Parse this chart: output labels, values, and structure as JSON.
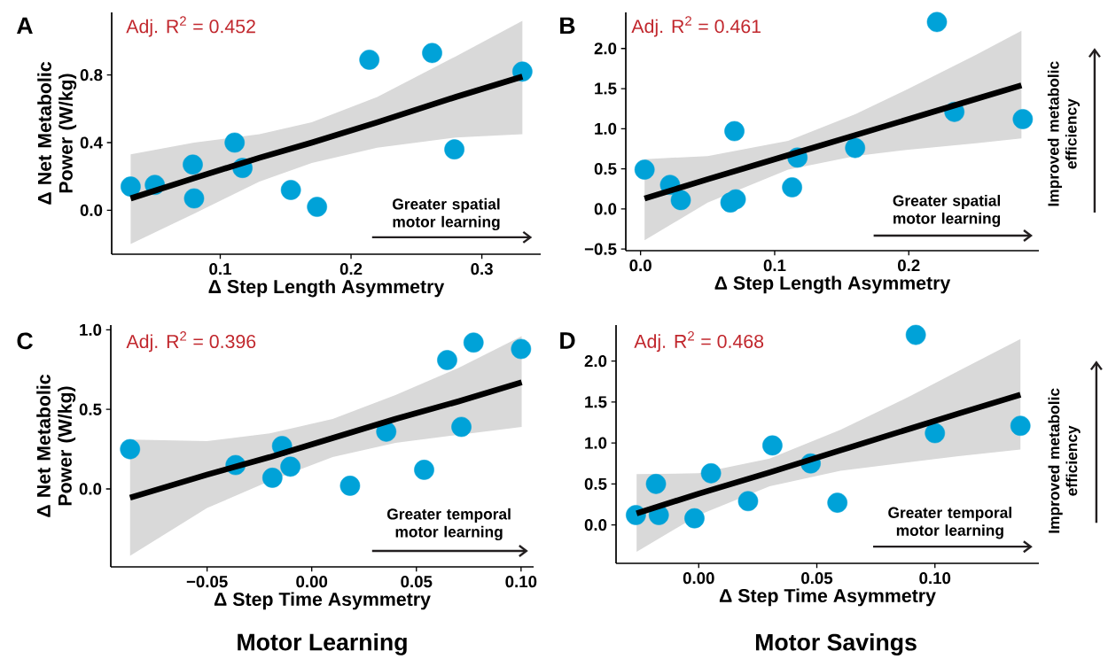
{
  "chart_data": [
    {
      "type": "scatter",
      "marker": "circle",
      "xlabel": "Δ Step Length Asymmetry",
      "ylabel": "Δ Net Metabolic Power (W/kg)",
      "xlim": [
        0.017,
        0.345
      ],
      "ylim": [
        -0.26,
        1.17
      ],
      "xticks": [
        0.1,
        0.2,
        0.3
      ],
      "yticks": [
        {
          "value": 0,
          "label": "0.0"
        },
        0.4,
        0.8
      ],
      "series": [
        {
          "color": "#00a2d8",
          "x": [
            0.0315,
            0.05,
            0.079,
            0.08,
            0.111,
            0.117,
            0.154,
            0.174,
            0.214,
            0.262,
            0.279,
            0.331
          ],
          "values": [
            0.14,
            0.15,
            0.27,
            0.07,
            0.4,
            0.25,
            0.12,
            0.02,
            0.89,
            0.93,
            0.36,
            0.82
          ]
        },
        {
          "type": "line",
          "marker": "none",
          "color": "#000000",
          "x": [
            0.0315,
            0.08,
            0.13,
            0.17,
            0.22,
            0.28,
            0.331
          ],
          "values": [
            0.07,
            0.19,
            0.31,
            0.4,
            0.52,
            0.67,
            0.79
          ],
          "lower": [
            -0.2,
            -0.02,
            0.17,
            0.28,
            0.37,
            0.43,
            0.45
          ],
          "upper": [
            0.33,
            0.4,
            0.45,
            0.52,
            0.67,
            0.91,
            1.12
          ]
        }
      ],
      "annotations": [
        "A",
        "Adj. R$^{2}$ = 0.452",
        "Greater spatial motor learning"
      ]
    },
    {
      "type": "scatter",
      "marker": "circle",
      "xlabel": "Δ Step Length Asymmetry",
      "xlim": [
        -0.011,
        0.297
      ],
      "ylim": [
        -0.52,
        2.45
      ],
      "xticks": [
        {
          "value": 0,
          "label": "0.0"
        },
        0.1,
        0.2
      ],
      "yticks": [
        {
          "value": -0.5,
          "label": "−0.5"
        },
        {
          "value": 0,
          "label": "0.0"
        },
        0.5,
        {
          "value": 1,
          "label": "1.0"
        },
        1.5,
        {
          "value": 2,
          "label": "2.0"
        }
      ],
      "series": [
        {
          "color": "#00a2d8",
          "x": [
            0.003,
            0.022,
            0.03,
            0.067,
            0.071,
            0.07,
            0.117,
            0.113,
            0.16,
            0.221,
            0.234,
            0.285
          ],
          "values": [
            0.49,
            0.3,
            0.11,
            0.08,
            0.12,
            0.97,
            0.64,
            0.27,
            0.76,
            2.33,
            1.21,
            1.12
          ]
        },
        {
          "type": "line",
          "marker": "none",
          "color": "#000000",
          "x": [
            0.003,
            0.05,
            0.11,
            0.16,
            0.2,
            0.25,
            0.284
          ],
          "values": [
            0.13,
            0.37,
            0.67,
            0.92,
            1.12,
            1.37,
            1.54
          ],
          "lower": [
            -0.39,
            0.08,
            0.49,
            0.66,
            0.74,
            0.82,
            0.88
          ],
          "upper": [
            0.62,
            0.66,
            0.85,
            1.18,
            1.5,
            1.92,
            2.22
          ]
        }
      ],
      "annotations": [
        "B",
        "Adj. R$^{2}$ = 0.461",
        "Greater spatial motor learning",
        "Improved metabolic efficiency"
      ]
    },
    {
      "type": "scatter",
      "marker": "circle",
      "xlabel": "Δ Step Time Asymmetry",
      "ylabel": "Δ Net Metabolic Power (W/kg)",
      "xlim": [
        -0.096,
        0.106
      ],
      "ylim": [
        -0.49,
        1.03
      ],
      "xticks": [
        {
          "value": -0.05,
          "label": "−0.05"
        },
        {
          "value": 0,
          "label": "0.00"
        },
        0.05,
        {
          "value": 0.1,
          "label": "0.10"
        }
      ],
      "yticks": [
        {
          "value": 0,
          "label": "0.0"
        },
        0.5,
        {
          "value": 1,
          "label": "1.0"
        }
      ],
      "series": [
        {
          "color": "#00a2d8",
          "x": [
            -0.0868,
            -0.0364,
            -0.0188,
            -0.0142,
            -0.0102,
            0.0183,
            0.0356,
            0.0537,
            0.0647,
            0.0715,
            0.0773,
            0.1
          ],
          "values": [
            0.25,
            0.15,
            0.07,
            0.27,
            0.14,
            0.02,
            0.36,
            0.12,
            0.81,
            0.39,
            0.92,
            0.88
          ]
        },
        {
          "type": "line",
          "marker": "none",
          "color": "#000000",
          "x": [
            -0.0868,
            -0.05,
            -0.02,
            0.01,
            0.04,
            0.07,
            0.1003
          ],
          "values": [
            -0.055,
            0.09,
            0.2,
            0.32,
            0.44,
            0.55,
            0.67
          ],
          "lower": [
            -0.42,
            -0.12,
            0.05,
            0.2,
            0.29,
            0.34,
            0.39
          ],
          "upper": [
            0.31,
            0.3,
            0.35,
            0.44,
            0.59,
            0.76,
            0.96
          ]
        }
      ],
      "annotations": [
        "C",
        "Adj. R$^{2}$ = 0.396",
        "Greater temporal motor learning",
        "Motor Learning"
      ]
    },
    {
      "type": "scatter",
      "marker": "circle",
      "xlabel": "Δ Step Time Asymmetry",
      "xlim": [
        -0.035,
        0.144
      ],
      "ylim": [
        -0.47,
        2.44
      ],
      "xticks": [
        {
          "value": 0,
          "label": "0.00"
        },
        0.05,
        {
          "value": 0.1,
          "label": "0.10"
        }
      ],
      "yticks": [
        {
          "value": 0,
          "label": "0.0"
        },
        0.5,
        {
          "value": 1,
          "label": "1.0"
        },
        1.5,
        {
          "value": 2,
          "label": "2.0"
        }
      ],
      "series": [
        {
          "color": "#00a2d8",
          "x": [
            -0.0266,
            -0.0181,
            -0.0169,
            -0.0018,
            0.0052,
            0.0209,
            0.0312,
            0.0474,
            0.0587,
            0.0919,
            0.1,
            0.1362
          ],
          "values": [
            0.12,
            0.5,
            0.12,
            0.08,
            0.63,
            0.29,
            0.97,
            0.75,
            0.27,
            2.32,
            1.12,
            1.21
          ]
        },
        {
          "type": "line",
          "marker": "none",
          "color": "#000000",
          "x": [
            -0.0263,
            0.0,
            0.03,
            0.06,
            0.09,
            0.11,
            0.1362
          ],
          "values": [
            0.14,
            0.38,
            0.64,
            0.91,
            1.18,
            1.36,
            1.59
          ],
          "lower": [
            -0.33,
            0.12,
            0.47,
            0.66,
            0.77,
            0.84,
            0.92
          ],
          "upper": [
            0.62,
            0.63,
            0.81,
            1.16,
            1.58,
            1.88,
            2.27
          ]
        }
      ],
      "annotations": [
        "D",
        "Adj. R$^{2}$ = 0.468",
        "Greater temporal motor learning",
        "Improved metabolic efficiency",
        "Motor Savings"
      ]
    }
  ]
}
